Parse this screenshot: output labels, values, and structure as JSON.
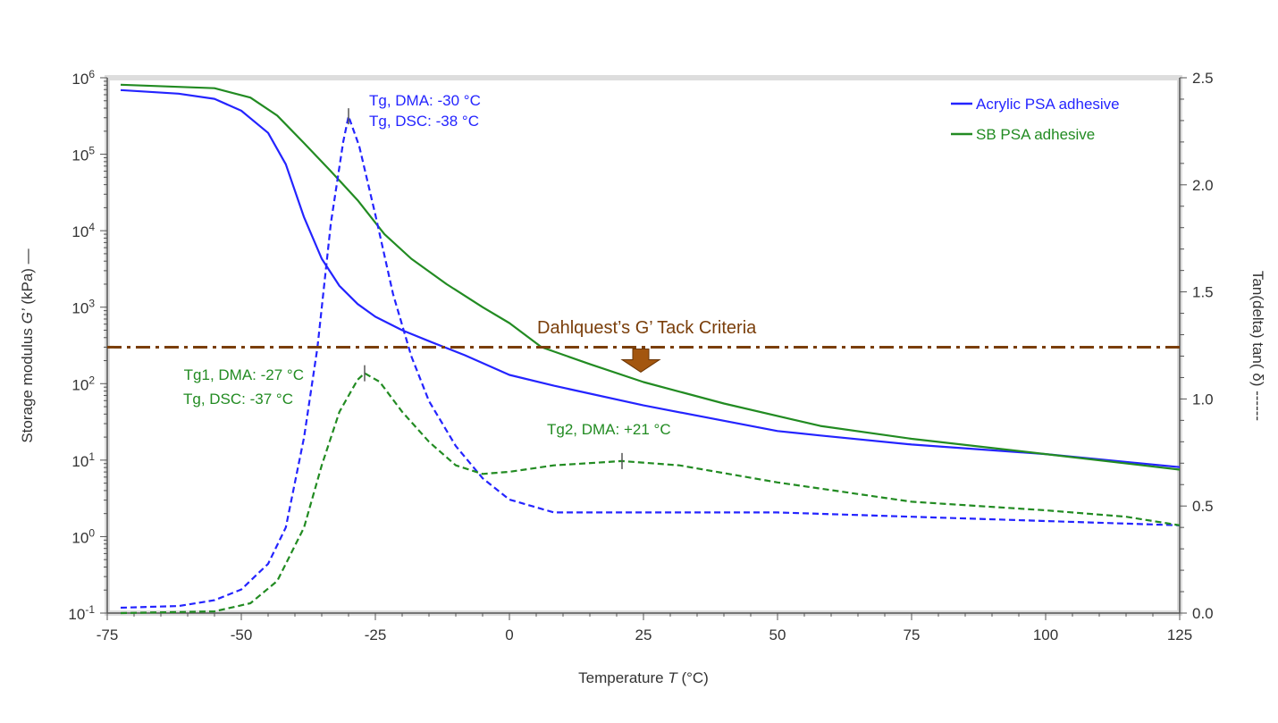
{
  "chart_data": {
    "type": "line",
    "xlabel": {
      "text": "Temperature ",
      "symbol": "T",
      "unit": " (°C)"
    },
    "ylabel_left": {
      "text": "Storage modulus ",
      "symbol": "G’",
      "unit": " (kPa) —"
    },
    "ylabel_right": "Tan(delta) tan( δ)  ------",
    "xlim": [
      -75,
      125
    ],
    "xticks": [
      -75,
      -50,
      -25,
      0,
      25,
      50,
      75,
      100,
      125
    ],
    "ylim_left": [
      0.1,
      1000000
    ],
    "yscale_left": "log",
    "yticks_left_exponents": [
      -1,
      0,
      1,
      2,
      3,
      4,
      5,
      6
    ],
    "ylim_right": [
      0,
      2.5
    ],
    "yticks_right": [
      "0.0",
      "0.5",
      "1.0",
      "1.5",
      "2.0",
      "2.5"
    ],
    "grid": false,
    "legend": {
      "placement": "top-right",
      "entries": [
        "Acrylic PSA adhesive",
        "SB PSA adhesive"
      ]
    },
    "colors": {
      "acrylic": "#2424ff",
      "sb": "#228b22",
      "criteria": "#7a3e0a",
      "arrow": "#a3560f"
    },
    "series": [
      {
        "name": "Acrylic PSA adhesive",
        "quantity": "G'",
        "axis": "left",
        "style": "solid",
        "color": "#2424ff",
        "x": [
          -72.5,
          -61.7,
          -55,
          -50,
          -45,
          -41.7,
          -38.3,
          -35,
          -31.7,
          -28.3,
          -25,
          -20,
          -15,
          -8.3,
          0,
          8.3,
          25,
          50,
          58,
          75,
          100,
          125
        ],
        "y": [
          690000,
          620000,
          530000,
          370000,
          190000,
          74000,
          15000,
          4300,
          1900,
          1100,
          750,
          500,
          360,
          235,
          130,
          94,
          52,
          24,
          21,
          16,
          12,
          8.1
        ]
      },
      {
        "name": "SB PSA adhesive",
        "quantity": "G'",
        "axis": "left",
        "style": "solid",
        "color": "#228b22",
        "x": [
          -72.5,
          -55,
          -48.3,
          -43.3,
          -38.3,
          -33.3,
          -28.3,
          -23.3,
          -18.3,
          -11.7,
          -5,
          0,
          6,
          15,
          25,
          40,
          58,
          75,
          100,
          125
        ],
        "y": [
          810000,
          730000,
          550000,
          320000,
          140000,
          60000,
          25000,
          9000,
          4300,
          2000,
          1000,
          620,
          300,
          180,
          105,
          55,
          28,
          19,
          12,
          7.5
        ]
      },
      {
        "name": "Acrylic PSA adhesive",
        "quantity": "tan delta",
        "axis": "right",
        "style": "dashed",
        "color": "#2424ff",
        "x": [
          -72.5,
          -61.7,
          -55,
          -50,
          -45,
          -41.7,
          -38.3,
          -35.8,
          -33.3,
          -31,
          -30,
          -28,
          -25,
          -21.7,
          -18.3,
          -15,
          -10,
          -5,
          0,
          8.3,
          25,
          50,
          75,
          100,
          125
        ],
        "y": [
          0.025,
          0.033,
          0.06,
          0.11,
          0.23,
          0.4,
          0.82,
          1.24,
          1.82,
          2.2,
          2.32,
          2.18,
          1.86,
          1.49,
          1.2,
          0.99,
          0.78,
          0.63,
          0.53,
          0.47,
          0.47,
          0.47,
          0.45,
          0.43,
          0.41
        ]
      },
      {
        "name": "SB PSA adhesive",
        "quantity": "tan delta",
        "axis": "right",
        "style": "dashed",
        "color": "#228b22",
        "x": [
          -72.5,
          -55,
          -48.3,
          -43.3,
          -38.3,
          -35,
          -31.7,
          -28.3,
          -27,
          -24.2,
          -20,
          -15,
          -10,
          -5,
          0,
          8.3,
          21,
          31.7,
          50,
          75,
          100,
          115,
          125
        ],
        "y": [
          0.0,
          0.008,
          0.046,
          0.15,
          0.4,
          0.69,
          0.94,
          1.09,
          1.12,
          1.08,
          0.94,
          0.8,
          0.69,
          0.65,
          0.66,
          0.69,
          0.71,
          0.69,
          0.61,
          0.52,
          0.48,
          0.45,
          0.41
        ]
      }
    ],
    "criteria_line": {
      "label": "Dahlquest’s G’ Tack Criteria",
      "value": 300,
      "axis": "left"
    },
    "annotations": [
      {
        "lines": [
          "Tg, DMA: -30 °C",
          "Tg, DSC: -38 °C"
        ],
        "color": "#2424ff",
        "marker": {
          "x": -30,
          "y": 2.32
        }
      },
      {
        "lines": [
          "Tg1, DMA: -27 °C",
          "Tg, DSC: -37 °C"
        ],
        "color": "#228b22",
        "marker": {
          "x": -27,
          "y": 1.12
        }
      },
      {
        "lines": [
          "Tg2, DMA: +21 °C"
        ],
        "color": "#228b22",
        "marker": {
          "x": 21,
          "y": 0.71
        }
      }
    ]
  }
}
